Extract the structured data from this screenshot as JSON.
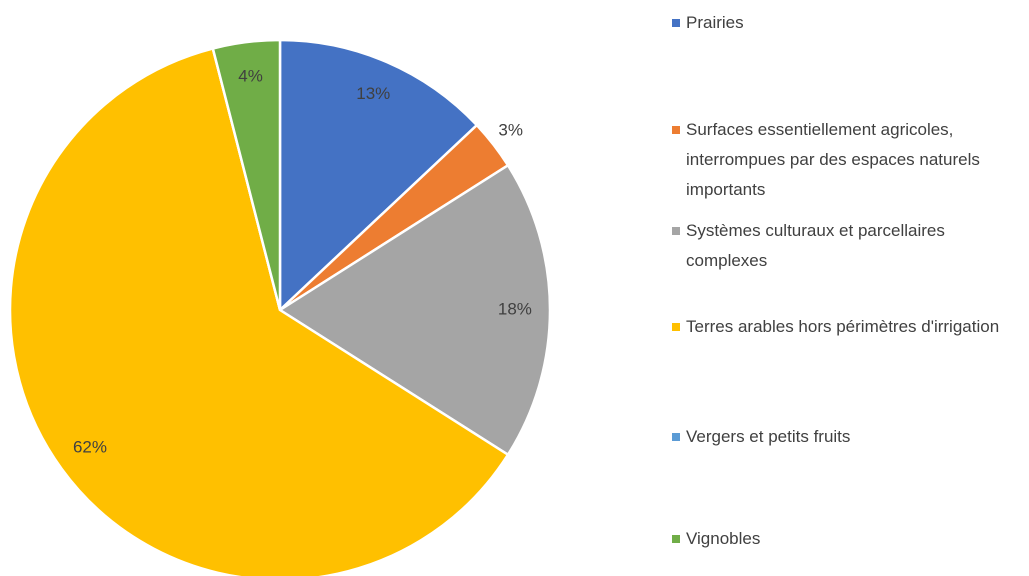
{
  "chart_data": {
    "type": "pie",
    "categories": [
      "Prairies",
      "Surfaces essentiellement agricoles, interrompues par des espaces naturels importants",
      "Systèmes culturaux et parcellaires complexes",
      "Terres arables hors périmètres d'irrigation",
      "Vergers et petits fruits",
      "Vignobles"
    ],
    "values": [
      13,
      3,
      18,
      62,
      0,
      4
    ],
    "value_labels": [
      "13%",
      "3%",
      "18%",
      "62%",
      null,
      "4%"
    ],
    "colors": [
      "#4472c4",
      "#ed7d31",
      "#a5a5a5",
      "#ffc000",
      "#5b9bd5",
      "#70ad47"
    ],
    "legend": "right"
  }
}
